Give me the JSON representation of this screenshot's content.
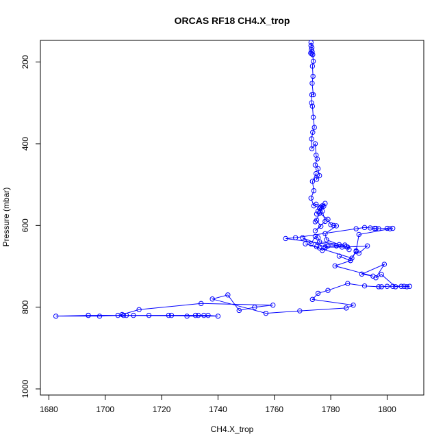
{
  "chart_data": {
    "type": "line",
    "title": "ORCAS RF18 CH4.X_trop",
    "xlabel": "CH4.X_trop",
    "ylabel": "Pressure (mbar)",
    "xlim": [
      1677,
      1813
    ],
    "ylim": [
      1015,
      147
    ],
    "y_inverted": true,
    "xticks": [
      1680,
      1700,
      1720,
      1740,
      1760,
      1780,
      1800
    ],
    "yticks": [
      200,
      400,
      600,
      800,
      1000
    ],
    "grid": false,
    "legend": "none",
    "color": "#0000ff",
    "marker": "open-circle",
    "series": [
      {
        "x": [
          1773.0,
          1773.0,
          1773.3,
          1773.1,
          1773.4,
          1772.9,
          1773.2,
          1773.6,
          1773.8,
          1773.5,
          1773.7,
          1773.4,
          1773.8,
          1773.3,
          1773.2,
          1773.5,
          1773.8,
          1774.2,
          1773.6,
          1773.2,
          1773.3,
          1774.5,
          1774.8,
          1775.2,
          1774.5,
          1775.5,
          1776.0,
          1775.0,
          1774.8,
          1773.5,
          1774.0,
          1773.0,
          1774.0,
          1774.8,
          1777.0,
          1775.5,
          1775.0,
          1776.0,
          1778.0,
          1774.5,
          1775.0,
          1776.5,
          1774.5,
          1778.0,
          1777.0,
          1776.5,
          1777.5,
          1776.0,
          1779.0,
          1780.0,
          1781.0,
          1782.0,
          1778.0,
          1778.5,
          1783.0,
          1785.0,
          1776.0,
          1775.5,
          1774.5,
          1773.0,
          1770.0,
          1778.0,
          1786.0,
          1786.5,
          1785.5,
          1764.0,
          1767.5,
          1789.0,
          1792.0,
          1794.0,
          1795.5,
          1796.0,
          1797.0,
          1800.0,
          1801.0,
          1802.0,
          1790.0,
          1789.0,
          1787.5,
          1771.0,
          1775.0,
          1776.0,
          1777.0,
          1778.0,
          1779.0,
          1782.0,
          1784.0,
          1793.0,
          1790.0,
          1789.0,
          1787.0,
          1783.0,
          1787.0,
          1781.5,
          1795.0,
          1791.0,
          1799.0,
          1796.0,
          1798.0,
          1803.0,
          1805.0,
          1806.0,
          1807.0,
          1808.0,
          1802.0,
          1800.0,
          1798.0,
          1797.0,
          1792.0,
          1786.0,
          1779.0,
          1775.5,
          1773.5,
          1788.0,
          1785.5,
          1769.0,
          1757.0,
          1738.0,
          1743.5,
          1747.5,
          1753.0,
          1759.5,
          1734.0,
          1712.0,
          1706.0,
          1704.5,
          1715.5,
          1735.0,
          1732.0,
          1710.0,
          1706.5,
          1694.0,
          1682.5,
          1698.0,
          1707.5,
          1722.5,
          1723.5,
          1729.0,
          1733.0,
          1736.5,
          1740.0,
          1694.0
        ]
      },
      {
        "y": [
          152,
          160,
          165,
          170,
          175,
          178,
          180,
          182,
          198,
          210,
          235,
          252,
          280,
          280,
          300,
          308,
          335,
          360,
          372,
          388,
          412,
          400,
          428,
          437,
          452,
          461,
          478,
          487,
          473,
          492,
          515,
          533,
          552,
          548,
          552,
          565,
          572,
          558,
          546,
          591,
          587,
          602,
          613,
          590,
          565,
          555,
          553,
          570,
          585,
          598,
          600,
          601,
          620,
          635,
          647,
          648,
          640,
          630,
          627,
          645,
          630,
          653,
          653,
          659,
          652,
          632,
          630,
          608,
          605,
          606,
          607,
          607,
          608,
          607,
          608,
          607,
          622,
          662,
          680,
          645,
          652,
          655,
          661,
          655,
          650,
          650,
          653,
          650,
          668,
          664,
          686,
          675,
          686,
          699,
          724,
          719,
          695,
          728,
          720,
          750,
          749,
          749,
          750,
          749,
          749,
          749,
          750,
          750,
          748,
          742,
          759,
          766,
          781,
          795,
          802,
          809,
          815,
          780,
          770,
          808,
          800,
          795,
          791,
          806,
          818,
          820,
          820,
          820,
          820,
          820,
          820,
          820,
          822,
          822,
          820,
          820,
          820,
          822,
          820,
          820,
          822,
          820
        ]
      }
    ]
  }
}
